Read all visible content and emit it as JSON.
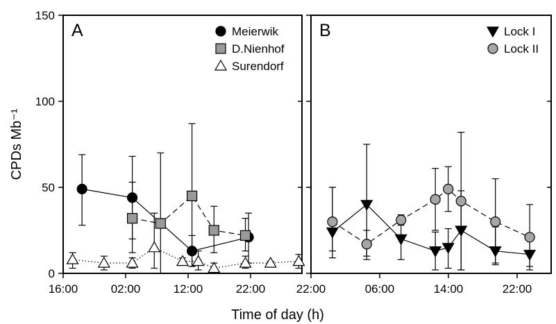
{
  "figure": {
    "ylabel": "CPDs Mb⁻¹",
    "xlabel": "Time of day (h)"
  },
  "chart_data": [
    {
      "type": "scatter",
      "panel_label": "A",
      "x_ticks": [
        "16:00",
        "02:00",
        "12:00",
        "22:00"
      ],
      "y_ticks": [
        "0",
        "50",
        "100",
        "150"
      ],
      "ylim": [
        0,
        150
      ],
      "legend": "top-right",
      "series": [
        {
          "name": "Meierwik",
          "marker": "circle",
          "fill": "#000000",
          "line": "solid",
          "points": [
            {
              "x": "19:00",
              "y": 49,
              "lo": 28,
              "hi": 69
            },
            {
              "x": "03:00",
              "y": 44,
              "lo": 20,
              "hi": 68
            },
            {
              "x": "12:30",
              "y": 13,
              "lo": 4,
              "hi": 22
            },
            {
              "x": "21:30",
              "y": 21,
              "lo": 6,
              "hi": 35
            }
          ]
        },
        {
          "name": "D.Nienhof",
          "marker": "square",
          "fill": "#9a9a9a",
          "line": "dashed",
          "points": [
            {
              "x": "03:00",
              "y": 32,
              "lo": 12,
              "hi": 53
            },
            {
              "x": "07:30",
              "y": 29,
              "lo": 0,
              "hi": 70
            },
            {
              "x": "12:30",
              "y": 45,
              "lo": 4,
              "hi": 87
            },
            {
              "x": "16:00",
              "y": 25,
              "lo": 12,
              "hi": 39
            },
            {
              "x": "21:00",
              "y": 22,
              "lo": 13,
              "hi": 32
            }
          ]
        },
        {
          "name": "Surendorf",
          "marker": "triangle-up",
          "fill": "#ffffff",
          "line": "dotted",
          "points": [
            {
              "x": "17:30",
              "y": 8,
              "lo": 3,
              "hi": 12
            },
            {
              "x": "22:30",
              "y": 6,
              "lo": 2,
              "hi": 10
            },
            {
              "x": "03:00",
              "y": 6,
              "lo": 3,
              "hi": 9
            },
            {
              "x": "06:30",
              "y": 15,
              "lo": 3,
              "hi": 35
            },
            {
              "x": "11:00",
              "y": 7,
              "lo": 5,
              "hi": 9
            },
            {
              "x": "13:30",
              "y": 7,
              "lo": 2,
              "hi": 13
            },
            {
              "x": "16:00",
              "y": 3,
              "lo": 1,
              "hi": 6
            },
            {
              "x": "21:00",
              "y": 6,
              "lo": 3,
              "hi": 10
            },
            {
              "x": "01:00",
              "y": 6,
              "lo": 5,
              "hi": 7
            },
            {
              "x": "05:30",
              "y": 7,
              "lo": 3,
              "hi": 11
            }
          ]
        }
      ]
    },
    {
      "type": "scatter",
      "panel_label": "B",
      "x_ticks": [
        "22:00",
        "06:00",
        "14:00",
        "22:00"
      ],
      "y_ticks": [
        "0",
        "50",
        "100",
        "150"
      ],
      "ylim": [
        0,
        150
      ],
      "legend": "top-right",
      "series": [
        {
          "name": "Lock I",
          "marker": "triangle-down",
          "fill": "#000000",
          "line": "solid",
          "points": [
            {
              "x": "00:30",
              "y": 24,
              "lo": 13,
              "hi": 50
            },
            {
              "x": "04:30",
              "y": 40,
              "lo": 8,
              "hi": 75
            },
            {
              "x": "08:30",
              "y": 20,
              "lo": 8,
              "hi": 34
            },
            {
              "x": "12:30",
              "y": 13,
              "lo": 2,
              "hi": 24
            },
            {
              "x": "14:00",
              "y": 15,
              "lo": 3,
              "hi": 26
            },
            {
              "x": "15:30",
              "y": 25,
              "lo": 2,
              "hi": 48
            },
            {
              "x": "19:30",
              "y": 13,
              "lo": 5,
              "hi": 27
            },
            {
              "x": "23:30",
              "y": 11,
              "lo": 4,
              "hi": 19
            }
          ]
        },
        {
          "name": "Lock II",
          "marker": "circle",
          "fill": "#a6a6a6",
          "line": "dashed",
          "points": [
            {
              "x": "00:30",
              "y": 30,
              "lo": 9,
              "hi": 50
            },
            {
              "x": "04:30",
              "y": 17,
              "lo": 10,
              "hi": 25
            },
            {
              "x": "08:30",
              "y": 31,
              "lo": 28,
              "hi": 33
            },
            {
              "x": "12:30",
              "y": 43,
              "lo": 25,
              "hi": 61
            },
            {
              "x": "14:00",
              "y": 49,
              "lo": 36,
              "hi": 62
            },
            {
              "x": "15:30",
              "y": 42,
              "lo": 2,
              "hi": 82
            },
            {
              "x": "19:30",
              "y": 30,
              "lo": 6,
              "hi": 55
            },
            {
              "x": "23:30",
              "y": 21,
              "lo": 2,
              "hi": 40
            }
          ]
        }
      ]
    }
  ]
}
